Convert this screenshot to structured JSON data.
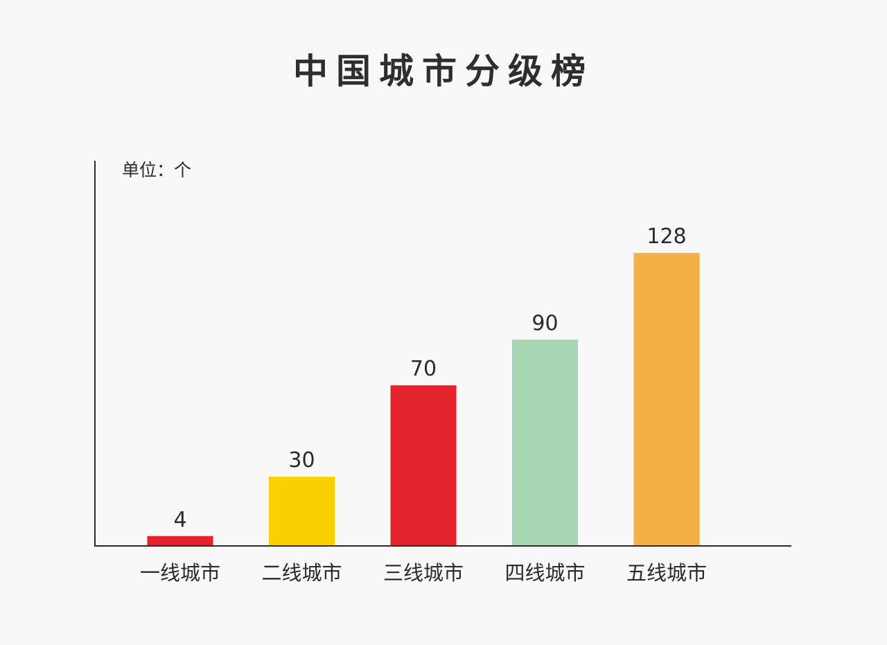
{
  "chart_data": {
    "type": "bar",
    "title": "中国城市分级榜",
    "unit_label": "单位：个",
    "categories": [
      "一线城市",
      "二线城市",
      "三线城市",
      "四线城市",
      "五线城市"
    ],
    "values": [
      4,
      30,
      70,
      90,
      128
    ],
    "colors": [
      "#e3232c",
      "#fbd000",
      "#e3232c",
      "#a8d5b1",
      "#f5b046"
    ],
    "axis_color": "#2b2b2b",
    "ylim": [
      0,
      128
    ],
    "grid": false,
    "legend": "none"
  }
}
